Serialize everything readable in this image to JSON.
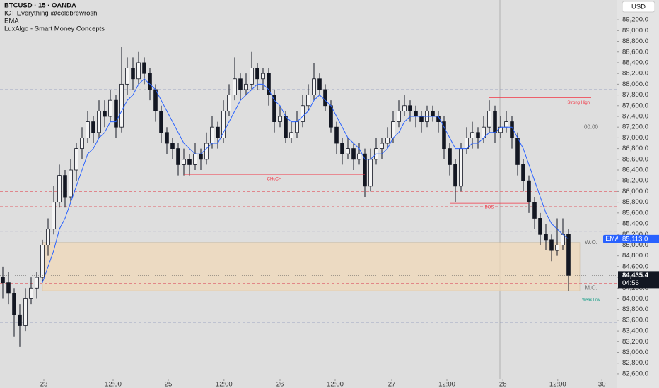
{
  "chart_data": {
    "type": "candlestick",
    "title": "BTCUSD · 15 · OANDA",
    "indicators": [
      "ICT Everything @coldbrewrosh",
      "EMA",
      "LuxAlgo - Smart Money Concepts"
    ],
    "currency": "USD",
    "xlim": [
      -0.5,
      108.5
    ],
    "xticks": [
      {
        "value": 7.25,
        "label": "23"
      },
      {
        "value": 19.5,
        "label": "12:00"
      },
      {
        "value": 29.25,
        "label": "25"
      },
      {
        "value": 39.1,
        "label": "12:00"
      },
      {
        "value": 49,
        "label": "26"
      },
      {
        "value": 58.75,
        "label": "12:00"
      },
      {
        "value": 68.75,
        "label": "27"
      },
      {
        "value": 78.5,
        "label": "12:00"
      },
      {
        "value": 88.4,
        "label": "28"
      },
      {
        "value": 98.1,
        "label": "12:00"
      },
      {
        "value": 105.9,
        "label": "30"
      }
    ],
    "ylim": [
      82507,
      89570
    ],
    "yticks": [
      {
        "value": 82600,
        "label": "82,600.0"
      },
      {
        "value": 82800,
        "label": "82,800.0"
      },
      {
        "value": 83000,
        "label": "83,000.0"
      },
      {
        "value": 83200,
        "label": "83,200.0"
      },
      {
        "value": 83400,
        "label": "83,400.0"
      },
      {
        "value": 83600,
        "label": "83,600.0"
      },
      {
        "value": 83800,
        "label": "83,800.0"
      },
      {
        "value": 84000,
        "label": "84,000.0"
      },
      {
        "value": 84200,
        "label": "84,200.0"
      },
      {
        "value": 84400,
        "label": "84,400.0"
      },
      {
        "value": 84600,
        "label": "84,600.0"
      },
      {
        "value": 84800,
        "label": "84,800.0"
      },
      {
        "value": 85000,
        "label": "85,000.0"
      },
      {
        "value": 85200,
        "label": "85,200.0"
      },
      {
        "value": 85400,
        "label": "85,400.0"
      },
      {
        "value": 85600,
        "label": "85,600.0"
      },
      {
        "value": 85800,
        "label": "85,800.0"
      },
      {
        "value": 86000,
        "label": "86,000.0"
      },
      {
        "value": 86200,
        "label": "86,200.0"
      },
      {
        "value": 86400,
        "label": "86,400.0"
      },
      {
        "value": 86600,
        "label": "86,600.0"
      },
      {
        "value": 86800,
        "label": "86,800.0"
      },
      {
        "value": 87000,
        "label": "87,000.0"
      },
      {
        "value": 87200,
        "label": "87,200.0"
      },
      {
        "value": 87400,
        "label": "87,400.0"
      },
      {
        "value": 87600,
        "label": "87,600.0"
      },
      {
        "value": 87800,
        "label": "87,800.0"
      },
      {
        "value": 88000,
        "label": "88,000.0"
      },
      {
        "value": 88200,
        "label": "88,200.0"
      },
      {
        "value": 88400,
        "label": "88,400.0"
      },
      {
        "value": 88600,
        "label": "88,600.0"
      },
      {
        "value": 88800,
        "label": "88,800.0"
      },
      {
        "value": 89000,
        "label": "89,000.0"
      },
      {
        "value": 89200,
        "label": "89,200.0"
      }
    ],
    "candle_color": "#131722",
    "candles": [
      [
        84400,
        84600,
        84000,
        84300
      ],
      [
        84300,
        84500,
        83900,
        84100
      ],
      [
        84100,
        84200,
        83300,
        83700
      ],
      [
        83700,
        83900,
        83100,
        83500
      ],
      [
        83500,
        84200,
        83400,
        84000
      ],
      [
        84000,
        84400,
        83900,
        84200
      ],
      [
        84200,
        84500,
        84000,
        84400
      ],
      [
        84400,
        85100,
        84300,
        85000
      ],
      [
        85000,
        85500,
        84800,
        85300
      ],
      [
        85300,
        86100,
        85200,
        85800
      ],
      [
        85800,
        86500,
        85700,
        86300
      ],
      [
        86300,
        86400,
        85700,
        85900
      ],
      [
        85900,
        86600,
        85800,
        86400
      ],
      [
        86400,
        86900,
        86200,
        86800
      ],
      [
        86800,
        87200,
        86600,
        87000
      ],
      [
        87000,
        87500,
        86900,
        87300
      ],
      [
        87300,
        87400,
        86900,
        87100
      ],
      [
        87100,
        87700,
        87000,
        87500
      ],
      [
        87500,
        87700,
        87200,
        87400
      ],
      [
        87400,
        87900,
        87300,
        87700
      ],
      [
        87700,
        87800,
        87000,
        87200
      ],
      [
        87200,
        88700,
        87100,
        88000
      ],
      [
        88000,
        88500,
        87800,
        88300
      ],
      [
        88300,
        88500,
        87900,
        88100
      ],
      [
        88100,
        88600,
        88000,
        88400
      ],
      [
        88400,
        88500,
        88000,
        88200
      ],
      [
        88200,
        88300,
        87700,
        87900
      ],
      [
        87900,
        88000,
        87300,
        87500
      ],
      [
        87500,
        87600,
        86900,
        87100
      ],
      [
        87100,
        87200,
        86700,
        86900
      ],
      [
        86900,
        87000,
        86600,
        86800
      ],
      [
        86800,
        86900,
        86300,
        86500
      ],
      [
        86500,
        86800,
        86300,
        86600
      ],
      [
        86600,
        86700,
        86300,
        86500
      ],
      [
        86500,
        86900,
        86400,
        86700
      ],
      [
        86700,
        86800,
        86400,
        86600
      ],
      [
        86600,
        87100,
        86500,
        86900
      ],
      [
        86900,
        87400,
        86800,
        87200
      ],
      [
        87200,
        87300,
        86800,
        87000
      ],
      [
        87000,
        87700,
        86900,
        87500
      ],
      [
        87500,
        88000,
        87400,
        87800
      ],
      [
        87800,
        88500,
        87700,
        88100
      ],
      [
        88100,
        88200,
        87700,
        87900
      ],
      [
        87900,
        88200,
        87800,
        88000
      ],
      [
        88000,
        88600,
        87900,
        88300
      ],
      [
        88300,
        88400,
        87900,
        88100
      ],
      [
        88100,
        88300,
        87900,
        88200
      ],
      [
        88200,
        88300,
        87600,
        87800
      ],
      [
        87800,
        87900,
        87100,
        87300
      ],
      [
        87300,
        87600,
        87200,
        87400
      ],
      [
        87400,
        87500,
        86900,
        87000
      ],
      [
        87000,
        87300,
        86900,
        87100
      ],
      [
        87100,
        87500,
        87000,
        87300
      ],
      [
        87300,
        87800,
        87200,
        87600
      ],
      [
        87600,
        88000,
        87500,
        87800
      ],
      [
        87800,
        88400,
        87700,
        88100
      ],
      [
        88100,
        88200,
        87800,
        87900
      ],
      [
        87900,
        88000,
        87500,
        87600
      ],
      [
        87600,
        87700,
        87100,
        87200
      ],
      [
        87200,
        87300,
        86700,
        86900
      ],
      [
        86900,
        87000,
        86500,
        86700
      ],
      [
        86700,
        87000,
        86600,
        86800
      ],
      [
        86800,
        86900,
        86400,
        86600
      ],
      [
        86600,
        86900,
        86500,
        86700
      ],
      [
        86700,
        86800,
        85900,
        86100
      ],
      [
        86100,
        86800,
        86000,
        86600
      ],
      [
        86600,
        87000,
        86500,
        86800
      ],
      [
        86800,
        87000,
        86600,
        86900
      ],
      [
        86900,
        87200,
        86800,
        87000
      ],
      [
        87000,
        87500,
        86900,
        87300
      ],
      [
        87300,
        87700,
        87200,
        87500
      ],
      [
        87500,
        87800,
        87400,
        87600
      ],
      [
        87600,
        87700,
        87300,
        87500
      ],
      [
        87500,
        87600,
        87200,
        87400
      ],
      [
        87400,
        87500,
        87100,
        87300
      ],
      [
        87300,
        87600,
        87200,
        87500
      ],
      [
        87500,
        87600,
        87300,
        87400
      ],
      [
        87400,
        87500,
        87100,
        87300
      ],
      [
        87300,
        87400,
        86600,
        86800
      ],
      [
        86800,
        86900,
        86300,
        86500
      ],
      [
        86500,
        86600,
        85800,
        86100
      ],
      [
        86100,
        86900,
        86000,
        86800
      ],
      [
        86800,
        87200,
        86700,
        87000
      ],
      [
        87000,
        87300,
        86800,
        87100
      ],
      [
        87100,
        87200,
        86800,
        87000
      ],
      [
        87000,
        87400,
        86900,
        87200
      ],
      [
        87200,
        87700,
        87100,
        87500
      ],
      [
        87500,
        87600,
        86900,
        87100
      ],
      [
        87100,
        87400,
        87000,
        87200
      ],
      [
        87200,
        87500,
        87100,
        87300
      ],
      [
        87300,
        87400,
        86800,
        87000
      ],
      [
        87000,
        87100,
        86300,
        86500
      ],
      [
        86500,
        86600,
        86000,
        86200
      ],
      [
        86200,
        86300,
        85600,
        85800
      ],
      [
        85800,
        85900,
        85300,
        85500
      ],
      [
        85500,
        85600,
        85000,
        85200
      ],
      [
        85200,
        85400,
        84900,
        85100
      ],
      [
        85100,
        85200,
        84700,
        84900
      ],
      [
        84900,
        85500,
        84800,
        85000
      ],
      [
        85000,
        85500,
        84900,
        85200
      ],
      [
        85200,
        85300,
        84150,
        84435.4
      ]
    ],
    "ema": {
      "name": "EMA",
      "color": "#2962ff",
      "value": 85113,
      "label": "85,113.0",
      "values": [
        null,
        null,
        null,
        null,
        null,
        null,
        null,
        84300,
        84600,
        84900,
        85300,
        85500,
        85800,
        86100,
        86400,
        86700,
        86800,
        87000,
        87100,
        87300,
        87300,
        87500,
        87700,
        87800,
        88000,
        88100,
        88000,
        87900,
        87700,
        87500,
        87300,
        87100,
        86900,
        86800,
        86700,
        86700,
        86800,
        86900,
        86900,
        87100,
        87300,
        87500,
        87700,
        87800,
        87900,
        88000,
        88000,
        87900,
        87700,
        87600,
        87400,
        87300,
        87300,
        87400,
        87500,
        87700,
        87800,
        87700,
        87600,
        87400,
        87200,
        87000,
        86900,
        86800,
        86600,
        86600,
        86700,
        86700,
        86800,
        87000,
        87100,
        87300,
        87400,
        87400,
        87400,
        87400,
        87400,
        87400,
        87200,
        87000,
        86800,
        86800,
        86800,
        86900,
        86900,
        87000,
        87100,
        87100,
        87200,
        87200,
        87200,
        87000,
        86800,
        86500,
        86200,
        85900,
        85600,
        85400,
        85300,
        85200,
        85113
      ]
    },
    "last_price": {
      "value": 84435.4,
      "label": "84,435.4",
      "countdown": "04:56"
    },
    "levels": [
      {
        "value": 87900,
        "color": "#8a93b8"
      },
      {
        "value": 86000,
        "color": "#e07a80"
      },
      {
        "value": 85720,
        "color": "#e07a80"
      },
      {
        "value": 85260,
        "color": "#8a93b8"
      },
      {
        "value": 84290,
        "color": "#e07a80"
      },
      {
        "value": 83560,
        "color": "#8a93b8"
      }
    ],
    "zone": {
      "from": 7,
      "to": 102,
      "top": 85050,
      "bottom": 84150,
      "color": "#f0d8b8"
    },
    "structures": [
      {
        "label": "CHoCH",
        "value": 86320,
        "from": 32,
        "to": 64,
        "color": "#f23645"
      },
      {
        "label": "BOS",
        "value": 85780,
        "from": 79,
        "to": 93,
        "color": "#f23645"
      },
      {
        "label": "Strong High",
        "value": 87750,
        "from": 86,
        "to": 104,
        "color": "#f23645"
      }
    ],
    "annotations": [
      {
        "text": "00:00",
        "x": 104,
        "value": 87200,
        "color": "#666666"
      },
      {
        "text": "W.O.",
        "x": 104,
        "value": 85050,
        "color": "#666666"
      },
      {
        "text": "M.O.",
        "x": 104,
        "value": 84200,
        "color": "#666666"
      },
      {
        "text": "Weak Low",
        "x": 104,
        "value": 84060,
        "color": "#089981"
      }
    ]
  }
}
